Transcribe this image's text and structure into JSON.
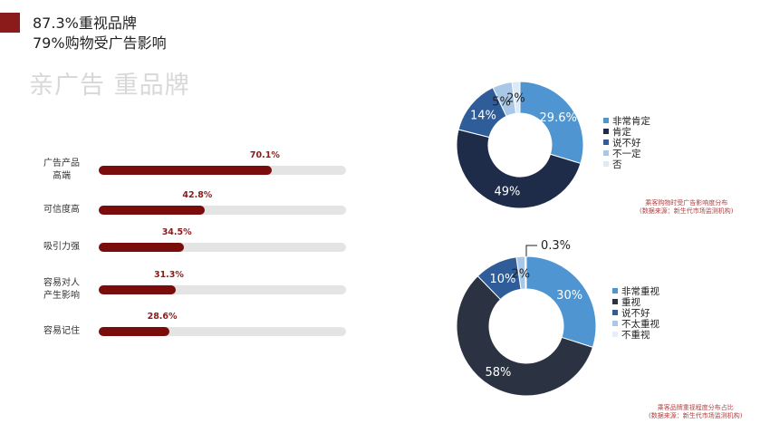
{
  "header": {
    "headline1": "87.3%重视品牌",
    "headline2": "79%购物受广告影响",
    "big_title": "亲广告 重品牌"
  },
  "colors": {
    "accent": "#8b1a1a",
    "bar": "#7a0c0c",
    "track": "#e4e4e4"
  },
  "chart_data": [
    {
      "type": "bar",
      "orientation": "horizontal",
      "categories": [
        "广告产品\n高端",
        "可信度高",
        "吸引力强",
        "容易对人\n产生影响",
        "容易记住"
      ],
      "values": [
        70.1,
        42.8,
        34.5,
        31.3,
        28.6
      ],
      "value_labels": [
        "70.1%",
        "42.8%",
        "34.5%",
        "31.3%",
        "28.6%"
      ],
      "xlim": [
        0,
        100
      ]
    },
    {
      "type": "pie",
      "donut": true,
      "categories": [
        "非常肯定",
        "肯定",
        "说不好",
        "不一定",
        "否"
      ],
      "values": [
        29.6,
        49,
        14,
        5,
        2
      ],
      "value_labels": [
        "29.6%",
        "49%",
        "14%",
        "5%",
        "2%"
      ],
      "colors": [
        "#4f95d2",
        "#1e2c4a",
        "#2f5d9a",
        "#a9c7e6",
        "#dde9f5"
      ],
      "label_colors": [
        "#ffffff",
        "#ffffff",
        "#ffffff",
        "#222222",
        "#222222"
      ],
      "legend": "right",
      "caption": [
        "乘客购物时受广告影响度分布",
        "(数据来源：新生代市场监测机构)"
      ]
    },
    {
      "type": "pie",
      "donut": true,
      "categories": [
        "非常重视",
        "重视",
        "说不好",
        "不太重视",
        "不重视"
      ],
      "values": [
        30,
        58,
        10,
        2,
        0.3
      ],
      "value_labels": [
        "30%",
        "58%",
        "10%",
        "2%",
        "0.3%"
      ],
      "colors": [
        "#4f95d2",
        "#2b3343",
        "#2f5d9a",
        "#a9c7e6",
        "#e6eef7"
      ],
      "label_colors": [
        "#ffffff",
        "#ffffff",
        "#ffffff",
        "#222222",
        "#222222"
      ],
      "legend": "right",
      "caption": [
        "乘客品牌重视程度分布占比",
        "(数据来源：新生代市场监测机构)"
      ]
    }
  ]
}
